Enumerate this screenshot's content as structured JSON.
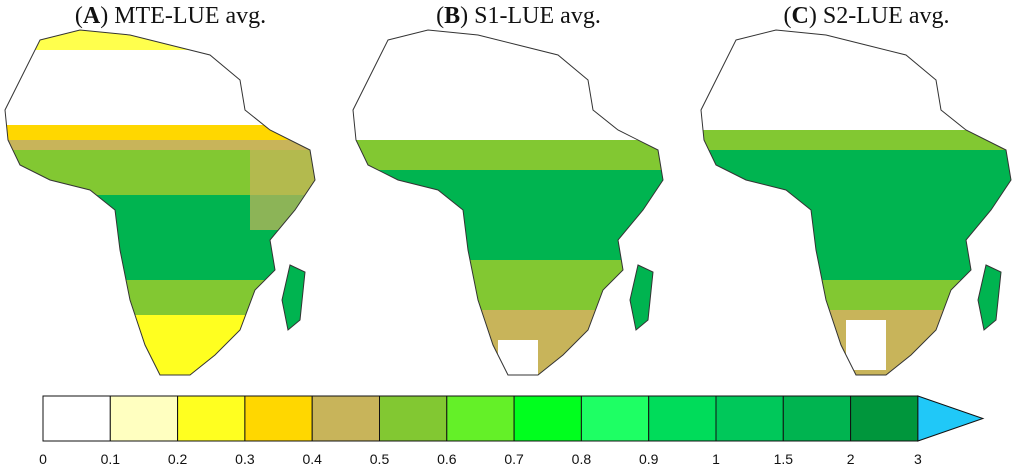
{
  "panels": [
    {
      "letter": "A",
      "title": "MTE-LUE avg."
    },
    {
      "letter": "B",
      "title": "S1-LUE avg."
    },
    {
      "letter": "C",
      "title": "S2-LUE avg."
    }
  ],
  "legend": {
    "tick_labels": [
      "0",
      "0.1",
      "0.2",
      "0.3",
      "0.4",
      "0.5",
      "0.6",
      "0.7",
      "0.8",
      "0.9",
      "1",
      "1.5",
      "2",
      "3"
    ],
    "colors": [
      "#ffffff",
      "#ffffc0",
      "#ffff20",
      "#ffd700",
      "#c8b45a",
      "#82c832",
      "#64f028",
      "#00ff1e",
      "#1eff64",
      "#00dc5a",
      "#00c85a",
      "#00b450",
      "#00963c"
    ],
    "overflow_color": "#20c8f8"
  },
  "colors": {
    "land_outline": "#333333",
    "desert_white": "#ffffff",
    "sahel_yellow": "#ffd700",
    "tropical_green": "#00b450"
  }
}
